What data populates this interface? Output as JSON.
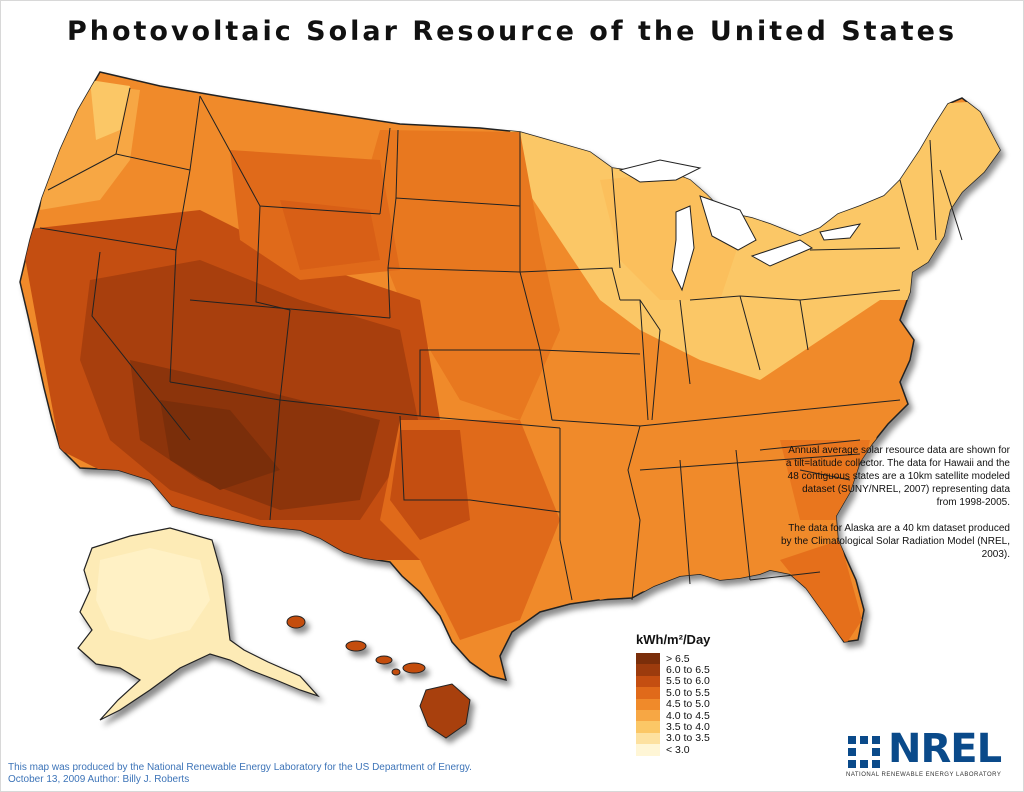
{
  "title": "Photovoltaic Solar Resource of the United States",
  "note": {
    "paragraph1": "Annual average solar resource data are shown for a tilt=latitude collector. The data for Hawaii and the 48 contiguous states are a 10km satellite modeled dataset (SUNY/NREL, 2007) representing data from 1998-2005.",
    "paragraph2": "The data for Alaska are a 40 km dataset produced by the Climatological Solar Radiation Model (NREL, 2003)."
  },
  "legend": {
    "title": "kWh/m²/Day",
    "items": [
      {
        "label": "> 6.5",
        "color": "#7a2e0a"
      },
      {
        "label": "6.0 to 6.5",
        "color": "#9c3b0d"
      },
      {
        "label": "5.5 to 6.0",
        "color": "#c44e11"
      },
      {
        "label": "5.0 to 5.5",
        "color": "#e06a1a"
      },
      {
        "label": "4.5 to 5.0",
        "color": "#f08a2a"
      },
      {
        "label": "4.0 to 4.5",
        "color": "#f7a744"
      },
      {
        "label": "3.5 to 4.0",
        "color": "#fbc766"
      },
      {
        "label": "3.0 to 3.5",
        "color": "#fde1a0"
      },
      {
        "label": "< 3.0",
        "color": "#fff6d6"
      }
    ]
  },
  "credit": {
    "line1": "This map was produced by the National Renewable Energy Laboratory for the US Department of Energy.",
    "line2": "October 13, 2009 Author: Billy J. Roberts"
  },
  "logo": {
    "word": "NREL",
    "subtitle": "NATIONAL RENEWABLE ENERGY LABORATORY",
    "color": "#0a4a8a"
  }
}
